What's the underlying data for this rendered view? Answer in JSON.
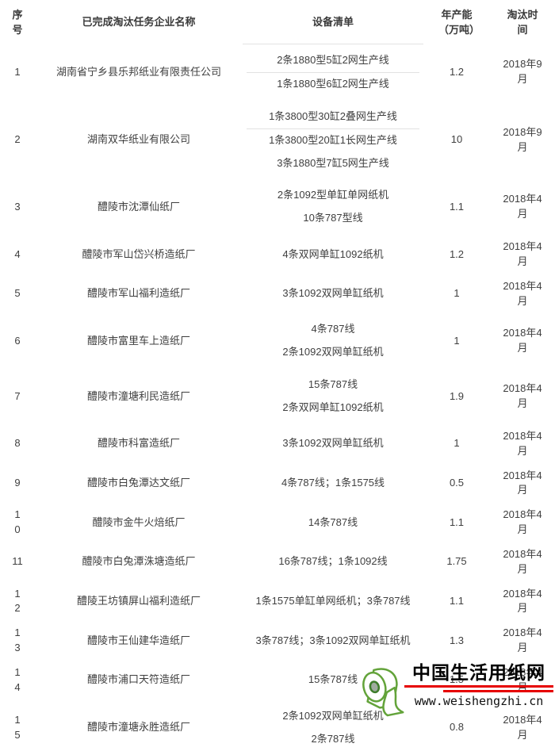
{
  "table": {
    "headers": [
      "序号",
      "已完成淘汰任务企业名称",
      "设备清单",
      "年产能（万吨）",
      "淘汰时间"
    ],
    "rows": [
      {
        "index": "1",
        "company": "湖南省宁乡县乐邦纸业有限责任公司",
        "equipment": [
          "2条1880型5缸2网生产线",
          "1条1880型6缸2网生产线"
        ],
        "capacity": "1.2",
        "time": "2018年9月"
      },
      {
        "index": "2",
        "company": "湖南双华纸业有限公司",
        "equipment": [
          "1条3800型30缸2叠网生产线",
          "1条3800型20缸1长网生产线",
          "3条1880型7缸5网生产线"
        ],
        "capacity": "10",
        "time": "2018年9月"
      },
      {
        "index": "3",
        "company": "醴陵市沈潭仙纸厂",
        "equipment": [
          "2条1092型单缸单网纸机",
          "10条787型线"
        ],
        "capacity": "1.1",
        "time": "2018年4月"
      },
      {
        "index": "4",
        "company": "醴陵市军山岱兴桥造纸厂",
        "equipment": [
          "4条双网单缸1092纸机"
        ],
        "capacity": "1.2",
        "time": "2018年4月"
      },
      {
        "index": "5",
        "company": "醴陵市军山福利造纸厂",
        "equipment": [
          "3条1092双网单缸纸机"
        ],
        "capacity": "1",
        "time": "2018年4月"
      },
      {
        "index": "6",
        "company": "醴陵市富里车上造纸厂",
        "equipment": [
          "4条787线",
          "2条1092双网单缸纸机"
        ],
        "capacity": "1",
        "time": "2018年4月"
      },
      {
        "index": "7",
        "company": "醴陵市潼塘利民造纸厂",
        "equipment": [
          "15条787线",
          "2条双网单缸1092纸机"
        ],
        "capacity": "1.9",
        "time": "2018年4月"
      },
      {
        "index": "8",
        "company": "醴陵市科富造纸厂",
        "equipment": [
          "3条1092双网单缸纸机"
        ],
        "capacity": "1",
        "time": "2018年4月"
      },
      {
        "index": "9",
        "company": "醴陵市白兔潭达文纸厂",
        "equipment": [
          "4条787线；1条1575线"
        ],
        "capacity": "0.5",
        "time": "2018年4月"
      },
      {
        "index": "10",
        "company": "醴陵市金牛火焙纸厂",
        "equipment": [
          "14条787线"
        ],
        "capacity": "1.1",
        "time": "2018年4月"
      },
      {
        "index": "11",
        "company": "醴陵市白兔潭洙塘造纸厂",
        "equipment": [
          "16条787线；1条1092线"
        ],
        "capacity": "1.75",
        "time": "2018年4月"
      },
      {
        "index": "12",
        "company": "醴陵王坊镇屏山福利造纸厂",
        "equipment": [
          "1条1575单缸单网纸机；3条787线"
        ],
        "capacity": "1.1",
        "time": "2018年4月"
      },
      {
        "index": "13",
        "company": "醴陵市王仙建华造纸厂",
        "equipment": [
          "3条787线；3条1092双网单缸纸机"
        ],
        "capacity": "1.3",
        "time": "2018年4月"
      },
      {
        "index": "14",
        "company": "醴陵市浦口天符造纸厂",
        "equipment": [
          "15条787线"
        ],
        "capacity": "1.5",
        "time": "2018年4月"
      },
      {
        "index": "15",
        "company": "醴陵市潼塘永胜造纸厂",
        "equipment": [
          "2条1092双网单缸纸机",
          "2条787线"
        ],
        "capacity": "0.8",
        "time": "2018年4月"
      }
    ]
  },
  "watermark": {
    "site_name": "中国生活用纸网",
    "site_url": "www.weishengzhi.cn",
    "icon": "paper-roll-icon",
    "underline_color": "#e60000",
    "roll_color": "#63a33a",
    "text_color": "#000000"
  },
  "colors": {
    "table_text": "#3f3f3f",
    "divider": "#e2e2e2",
    "background": "#ffffff"
  }
}
